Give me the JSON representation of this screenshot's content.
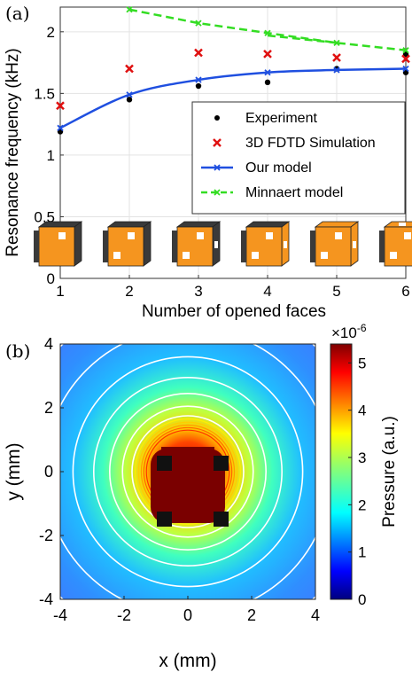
{
  "panel_a_label": "(a)",
  "panel_b_label": "(b)",
  "chart_data": [
    {
      "type": "scatter",
      "xlabel": "Number of opened faces",
      "ylabel": "Resonance frequency (kHz)",
      "xlim": [
        1,
        6
      ],
      "ylim": [
        0,
        2.2
      ],
      "xticks": [
        "1",
        "2",
        "3",
        "4",
        "5",
        "6"
      ],
      "yticks": [
        "0",
        "0.5",
        "1",
        "1.5",
        "2"
      ],
      "grid": true,
      "legend_position": "lower-right",
      "series": [
        {
          "name": "Experiment",
          "style": "dot",
          "color": "#000000",
          "points": [
            [
              1,
              1.19
            ],
            [
              2,
              1.45
            ],
            [
              3,
              1.56
            ],
            [
              4,
              1.59
            ],
            [
              5,
              1.7
            ],
            [
              6,
              1.67
            ],
            [
              6,
              1.82
            ]
          ]
        },
        {
          "name": "3D FDTD Simulation",
          "style": "x-marker",
          "color": "#e01010",
          "points": [
            [
              1,
              1.4
            ],
            [
              2,
              1.7
            ],
            [
              3,
              1.83
            ],
            [
              4,
              1.82
            ],
            [
              5,
              1.79
            ],
            [
              6,
              1.78
            ]
          ]
        },
        {
          "name": "Our model",
          "style": "line-x",
          "color": "#1f4fe0",
          "points": [
            [
              1,
              1.22
            ],
            [
              2,
              1.49
            ],
            [
              3,
              1.61
            ],
            [
              4,
              1.67
            ],
            [
              5,
              1.69
            ],
            [
              6,
              1.7
            ]
          ]
        },
        {
          "name": "Minnaert model",
          "style": "dashed-x",
          "color": "#33dd22",
          "points": [
            [
              2,
              2.18
            ],
            [
              3,
              2.07
            ],
            [
              4,
              1.99
            ],
            [
              5,
              1.91
            ],
            [
              6,
              1.85
            ]
          ]
        }
      ],
      "cube_insets": [
        {
          "opened_faces": 1
        },
        {
          "opened_faces": 2
        },
        {
          "opened_faces": 3
        },
        {
          "opened_faces": 4
        },
        {
          "opened_faces": 5
        },
        {
          "opened_faces": 6
        }
      ],
      "cube_colors": {
        "face": "#f5951f",
        "dark": "#3a3a3a",
        "opening": "#ffffff"
      }
    },
    {
      "type": "heatmap",
      "xlabel": "x (mm)",
      "ylabel": "y (mm)",
      "xlim": [
        -4,
        4
      ],
      "ylim": [
        -4,
        4
      ],
      "xticks": [
        "-4",
        "-2",
        "0",
        "2",
        "4"
      ],
      "yticks": [
        "4",
        "2",
        "0",
        "-2",
        "-4"
      ],
      "colorbar_label": "Pressure (a.u.)",
      "colorbar_exponent": "×10",
      "colorbar_exponent_power": "-6",
      "colorbar_range": [
        0,
        5.4
      ],
      "colorbar_ticks": [
        "0",
        "1",
        "2",
        "3",
        "4",
        "5"
      ],
      "colorscale": "jet",
      "contour_color": "#ffffff",
      "central_object": {
        "core_color": "#7a0000",
        "corner_color": "#111111",
        "half_size_mm": 1
      }
    }
  ]
}
